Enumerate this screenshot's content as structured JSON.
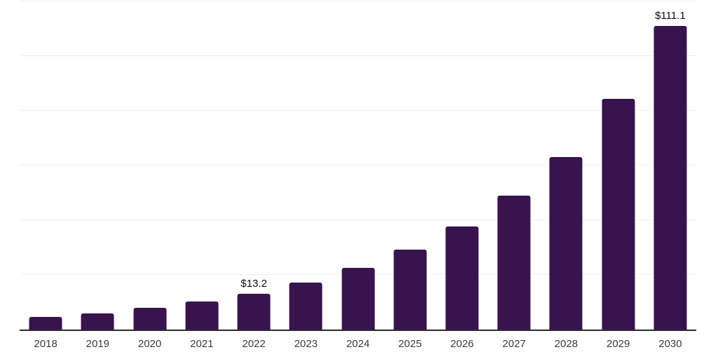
{
  "chart_data": {
    "type": "bar",
    "title": "",
    "xlabel": "",
    "ylabel": "",
    "categories": [
      "2018",
      "2019",
      "2020",
      "2021",
      "2022",
      "2023",
      "2024",
      "2025",
      "2026",
      "2027",
      "2028",
      "2029",
      "2030"
    ],
    "values": [
      4.6,
      5.8,
      7.9,
      10.3,
      13.2,
      17.2,
      22.5,
      29.3,
      37.6,
      49.0,
      63.2,
      84.3,
      111.1
    ],
    "data_labels": [
      "",
      "",
      "",
      "",
      "$13.2",
      "",
      "",
      "",
      "",
      "",
      "",
      "",
      "$111.1"
    ],
    "ylim": [
      0,
      120
    ],
    "gridline_step": 20,
    "grid": true,
    "legend": false,
    "y_axis_ticks_visible": false,
    "colors": {
      "bar": "#38134e",
      "gridline": "#ededed",
      "axis_line": "#2b2b2b",
      "data_label": "#0d0d0d",
      "tick_label": "#3c3c3c",
      "background": "#ffffff"
    }
  }
}
